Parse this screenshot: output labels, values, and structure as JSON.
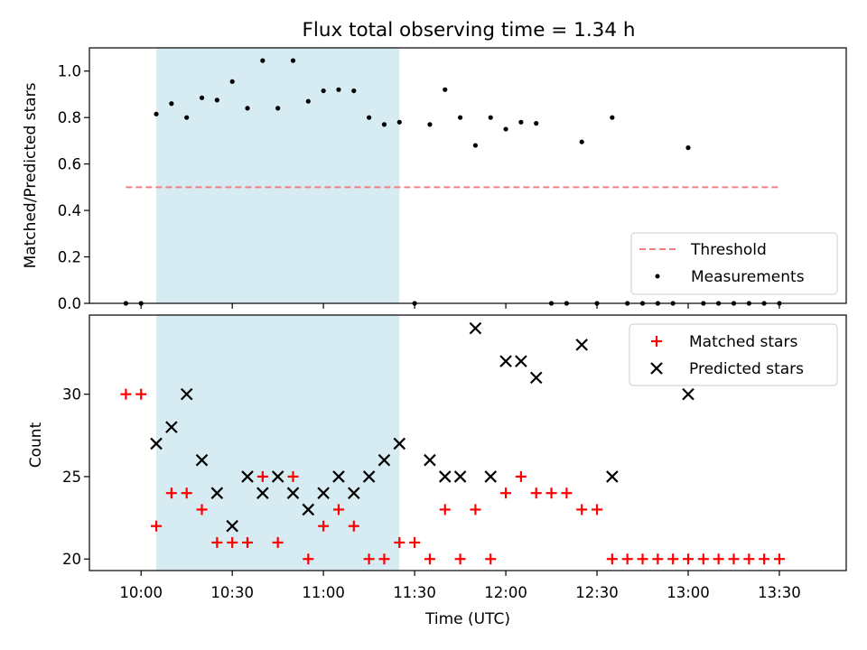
{
  "chart_data": [
    {
      "type": "scatter",
      "title": "Flux total observing time = 1.34 h",
      "xlabel": "",
      "ylabel": "Matched/Predicted stars",
      "ylim": [
        0,
        1.1
      ],
      "yticks": [
        "0.0",
        "0.2",
        "0.4",
        "0.6",
        "0.8",
        "1.0"
      ],
      "x_range_minutes": [
        "09:43",
        "13:52"
      ],
      "shaded_interval": [
        "10:05",
        "11:25"
      ],
      "shade_color": "#add8e6",
      "threshold": {
        "name": "Threshold",
        "y": 0.5,
        "x_from": "09:55",
        "x_to": "13:30",
        "color": "#f08080",
        "style": "dashed"
      },
      "legend": {
        "position": "lower-right",
        "entries": [
          "Threshold",
          "Measurements"
        ]
      },
      "series": [
        {
          "name": "Measurements",
          "color": "#000000",
          "marker": "dot",
          "x": [
            "09:55",
            "10:00",
            "10:05",
            "10:10",
            "10:15",
            "10:20",
            "10:25",
            "10:30",
            "10:35",
            "10:40",
            "10:45",
            "10:50",
            "10:55",
            "11:00",
            "11:05",
            "11:10",
            "11:15",
            "11:20",
            "11:25",
            "11:30",
            "11:35",
            "11:40",
            "11:45",
            "11:50",
            "11:55",
            "12:00",
            "12:05",
            "12:10",
            "12:15",
            "12:20",
            "12:25",
            "12:30",
            "12:35",
            "12:40",
            "12:45",
            "12:50",
            "12:55",
            "13:00",
            "13:05",
            "13:10",
            "13:15",
            "13:20",
            "13:25",
            "13:30"
          ],
          "y": [
            0,
            0,
            0.815,
            0.86,
            0.8,
            0.885,
            0.875,
            0.955,
            0.84,
            1.045,
            0.84,
            1.045,
            0.87,
            0.915,
            0.92,
            0.915,
            0.8,
            0.77,
            0.78,
            0,
            0.77,
            0.92,
            0.8,
            0.68,
            0.8,
            0.75,
            0.78,
            0.775,
            0,
            0,
            0.695,
            0,
            0.8,
            0,
            0,
            0,
            0,
            0.67,
            0,
            0,
            0,
            0,
            0,
            0
          ]
        }
      ]
    },
    {
      "type": "scatter",
      "xlabel": "Time (UTC)",
      "ylabel": "Count",
      "ylim": [
        19.3,
        34.8
      ],
      "yticks": [
        "20",
        "25",
        "30"
      ],
      "xticks": [
        "10:00",
        "10:30",
        "11:00",
        "11:30",
        "12:00",
        "12:30",
        "13:00",
        "13:30"
      ],
      "shaded_interval": [
        "10:05",
        "11:25"
      ],
      "legend": {
        "position": "upper-right",
        "entries": [
          "Matched stars",
          "Predicted stars"
        ]
      },
      "series": [
        {
          "name": "Matched stars",
          "color": "#ff0000",
          "marker": "plus",
          "x": [
            "09:55",
            "10:00",
            "10:05",
            "10:10",
            "10:15",
            "10:20",
            "10:25",
            "10:30",
            "10:35",
            "10:40",
            "10:45",
            "10:50",
            "10:55",
            "11:00",
            "11:05",
            "11:10",
            "11:15",
            "11:20",
            "11:25",
            "11:30",
            "11:35",
            "11:40",
            "11:45",
            "11:50",
            "11:55",
            "12:00",
            "12:05",
            "12:10",
            "12:15",
            "12:20",
            "12:25",
            "12:30",
            "12:35",
            "12:40",
            "12:45",
            "12:50",
            "12:55",
            "13:00",
            "13:05",
            "13:10",
            "13:15",
            "13:20",
            "13:25",
            "13:30"
          ],
          "y": [
            30,
            30,
            22,
            24,
            24,
            23,
            21,
            21,
            21,
            25,
            21,
            25,
            20,
            22,
            23,
            22,
            20,
            20,
            21,
            21,
            20,
            23,
            20,
            23,
            20,
            24,
            25,
            24,
            24,
            24,
            23,
            23,
            20,
            20,
            20,
            20,
            20,
            20,
            20,
            20,
            20,
            20,
            20,
            20
          ]
        },
        {
          "name": "Predicted stars",
          "color": "#000000",
          "marker": "x",
          "x": [
            "10:05",
            "10:10",
            "10:15",
            "10:20",
            "10:25",
            "10:30",
            "10:35",
            "10:40",
            "10:45",
            "10:50",
            "10:55",
            "11:00",
            "11:05",
            "11:10",
            "11:15",
            "11:20",
            "11:25",
            "11:35",
            "11:40",
            "11:45",
            "11:50",
            "11:55",
            "12:00",
            "12:05",
            "12:10",
            "12:25",
            "12:35",
            "13:00"
          ],
          "y": [
            27,
            28,
            30,
            26,
            24,
            22,
            25,
            24,
            25,
            24,
            23,
            24,
            25,
            24,
            25,
            26,
            27,
            26,
            25,
            25,
            34,
            25,
            32,
            32,
            31,
            33,
            25,
            30
          ]
        }
      ]
    }
  ]
}
